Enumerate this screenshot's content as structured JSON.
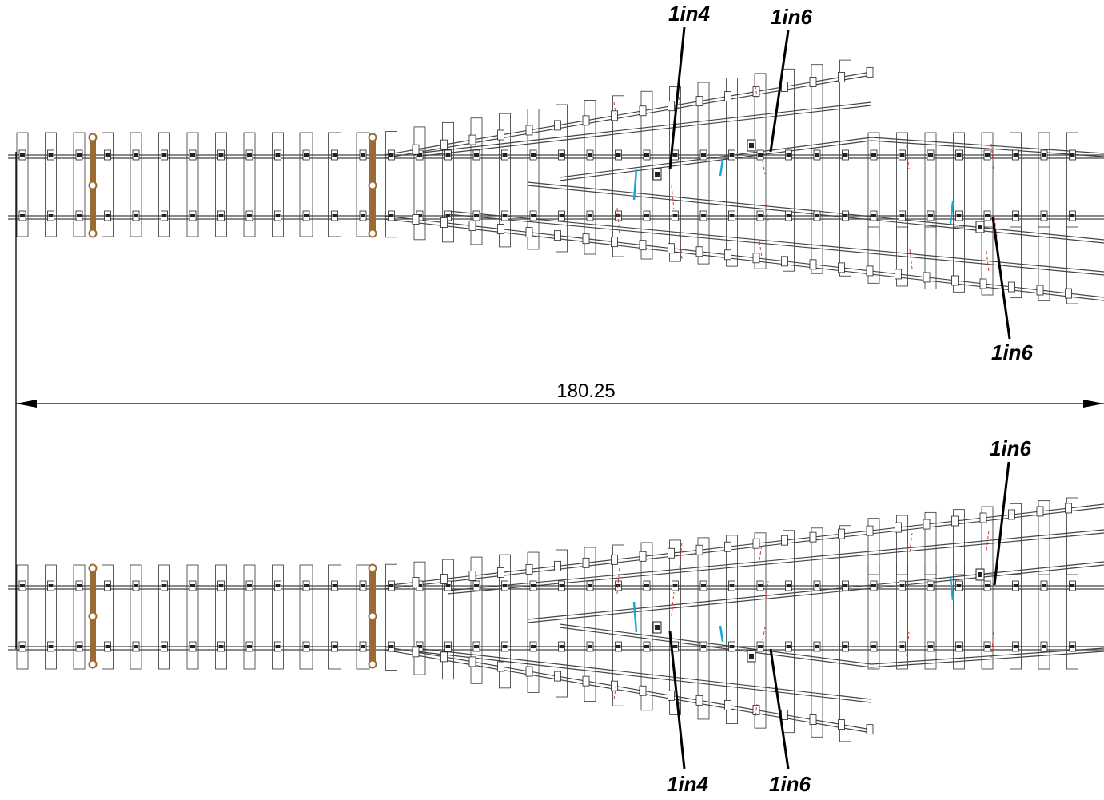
{
  "dimension": {
    "value": "180.25"
  },
  "labels": {
    "top_frog_left": "1in4",
    "top_frog_right": "1in6",
    "top_frog_lower": "1in6",
    "bottom_frog_upper": "1in6",
    "bottom_frog_left": "1in4",
    "bottom_frog_right": "1in6"
  },
  "colors": {
    "rail": "#444444",
    "sleeper": "#333333",
    "chair": "#222222",
    "tie_bar": "#9a6a32",
    "insulation_gap": "#1aa7d9",
    "cut_mark": "#e53030",
    "leader": "#000000"
  }
}
